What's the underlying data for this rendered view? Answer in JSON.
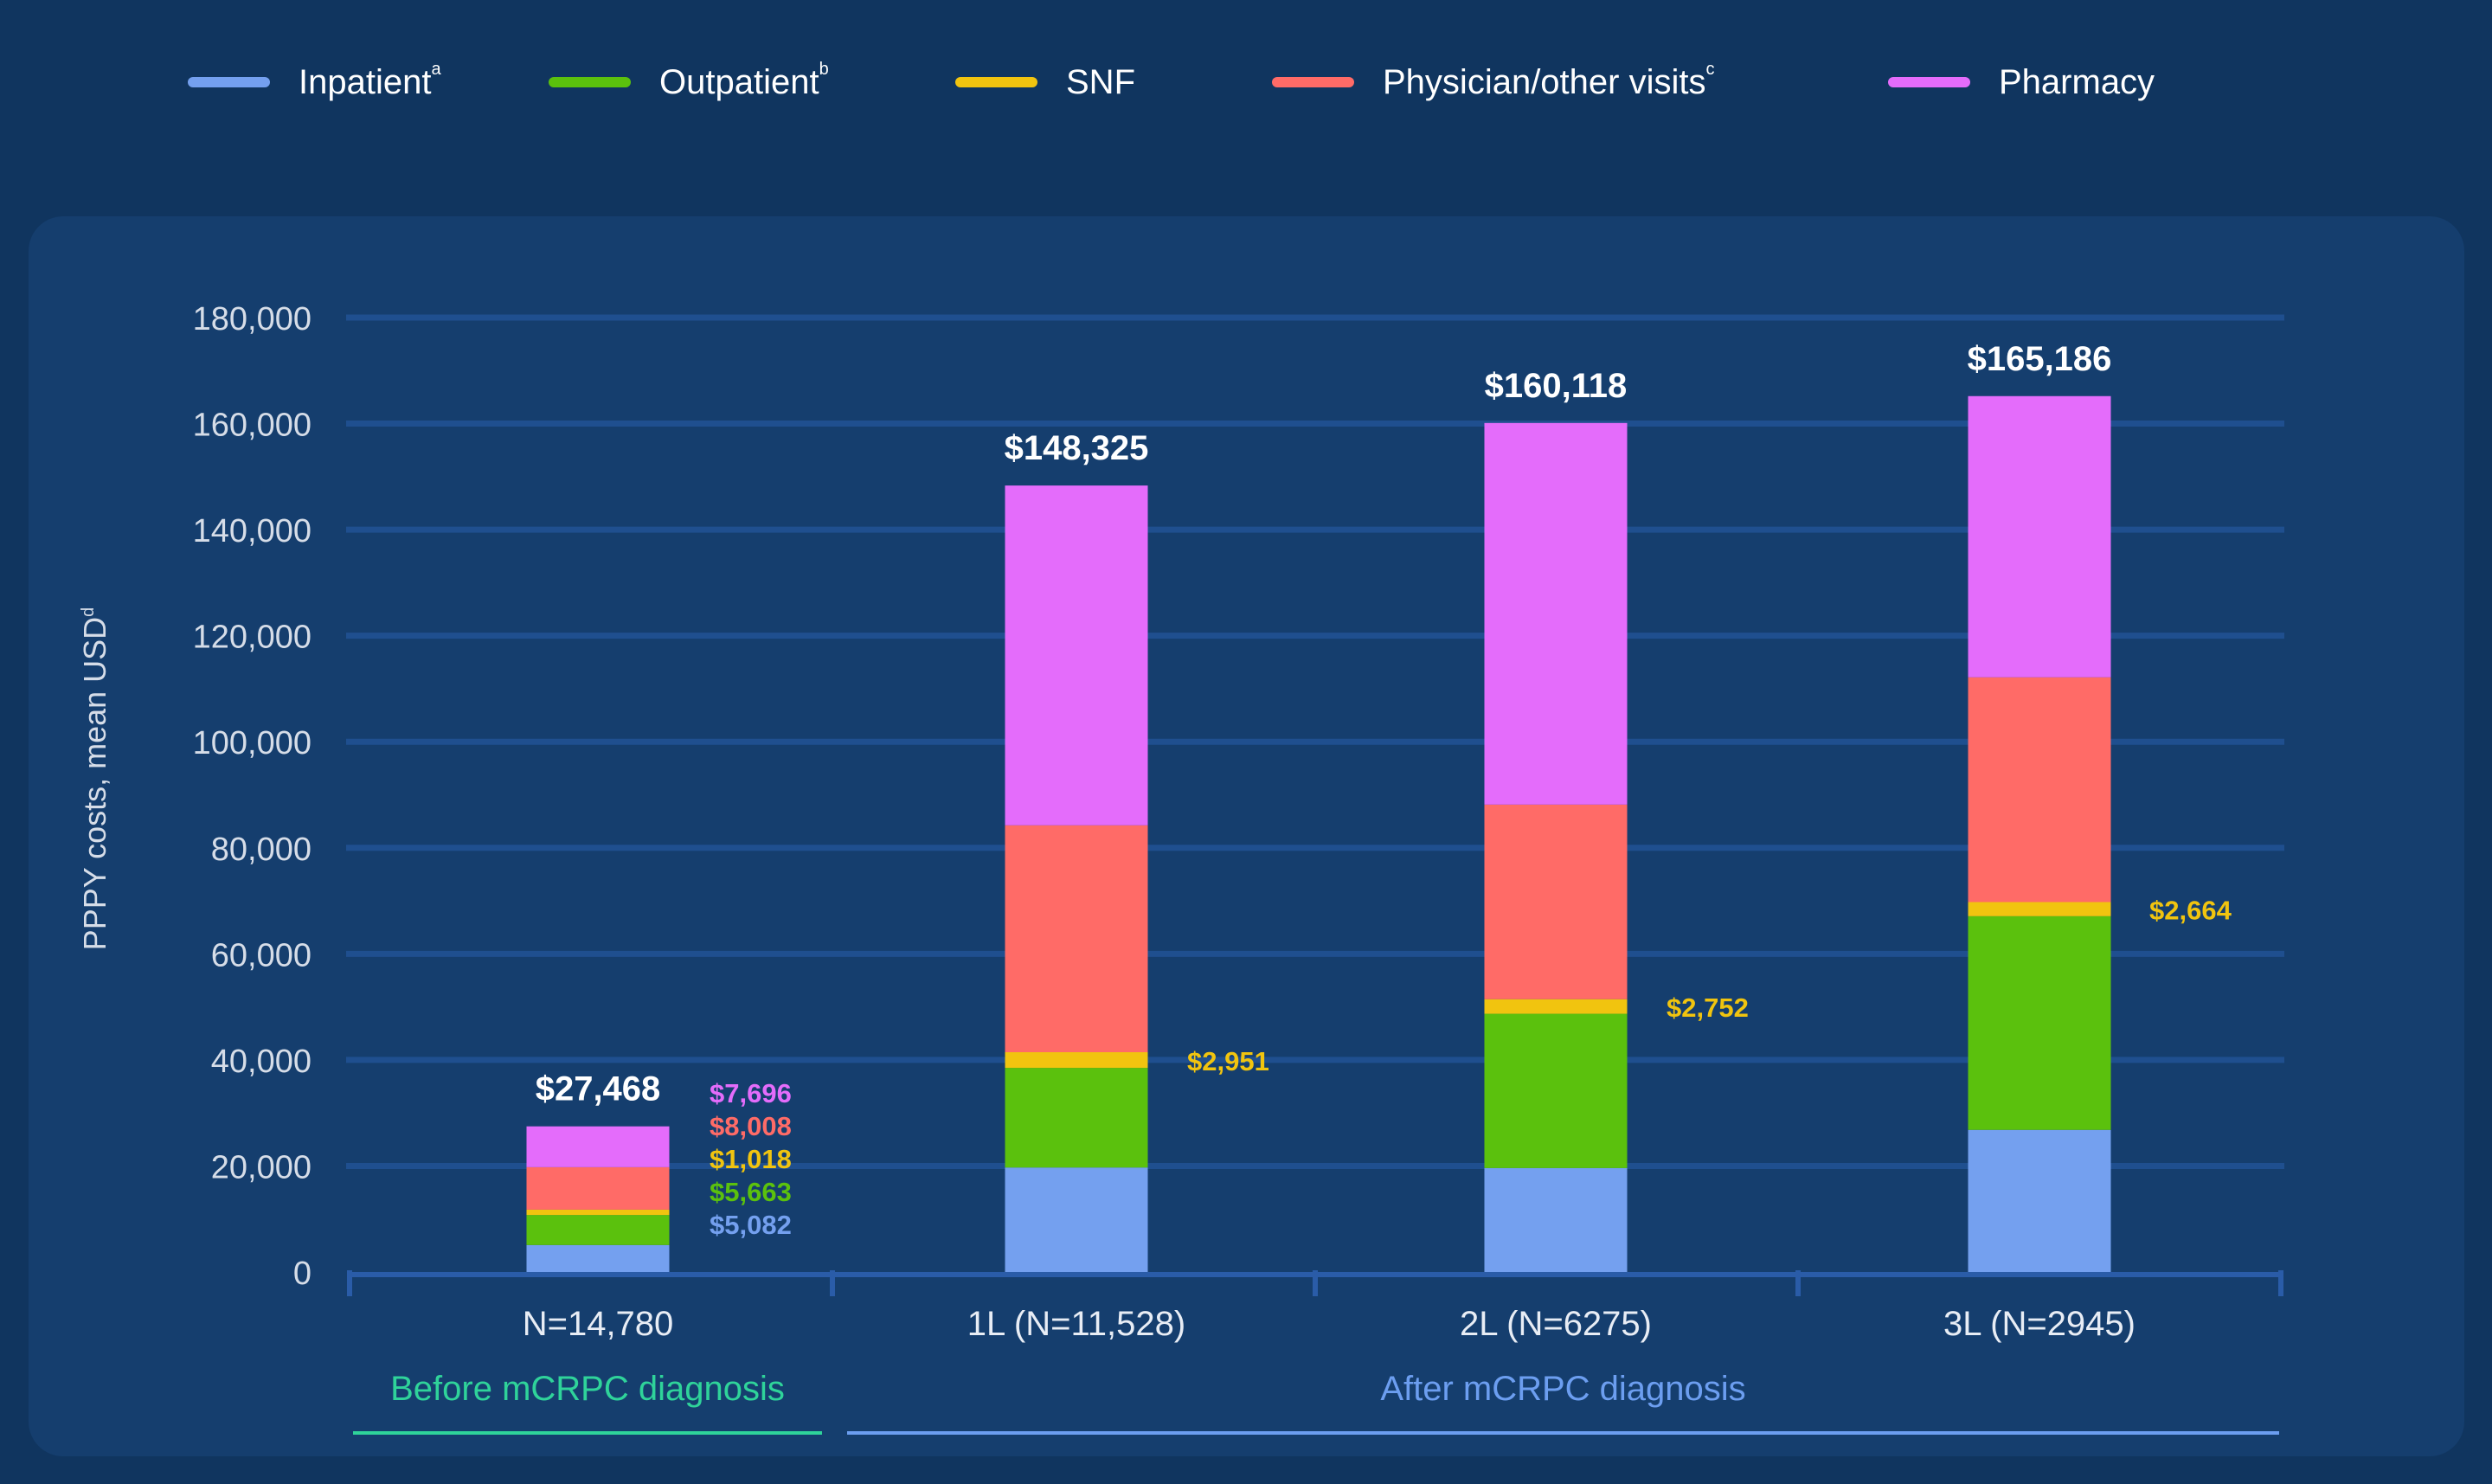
{
  "legend": [
    {
      "label": "Inpatient",
      "sup": "a",
      "color": "#74a0ef"
    },
    {
      "label": "Outpatient",
      "sup": "b",
      "color": "#5bc10d"
    },
    {
      "label": "SNF",
      "sup": "",
      "color": "#f1c40f"
    },
    {
      "label": "Physician/other visits",
      "sup": "c",
      "color": "#ff6b67"
    },
    {
      "label": "Pharmacy",
      "sup": "",
      "color": "#e46cfb"
    }
  ],
  "chart_data": {
    "type": "bar",
    "stacked": true,
    "ylabel": "PPPY costs, mean USD",
    "ylabel_sup": "d",
    "ylim": [
      0,
      180000
    ],
    "yticks": [
      "0",
      "20,000",
      "40,000",
      "60,000",
      "80,000",
      "100,000",
      "120,000",
      "140,000",
      "160,000",
      "180,000"
    ],
    "grid": true,
    "legend_position": "top",
    "categories": [
      "N=14,780",
      "1L (N=11,528)",
      "2L (N=6275)",
      "3L (N=2945)"
    ],
    "groups": [
      {
        "label": "Before mCRPC diagnosis",
        "color": "#2fd39a",
        "span": [
          0,
          0
        ]
      },
      {
        "label": "After mCRPC diagnosis",
        "color": "#6c9ef0",
        "span": [
          1,
          3
        ]
      }
    ],
    "totals": [
      "$27,468",
      "$148,325",
      "$160,118",
      "$165,186"
    ],
    "total_values": [
      27468,
      148325,
      160118,
      165186
    ],
    "series": [
      {
        "name": "Inpatient",
        "color": "#74a0ef",
        "values": [
          5082,
          19700,
          19600,
          26800
        ],
        "labels": [
          "$5,082",
          "",
          "",
          ""
        ]
      },
      {
        "name": "Outpatient",
        "color": "#5bc10d",
        "values": [
          5663,
          18800,
          29100,
          40300
        ],
        "labels": [
          "$5,663",
          "",
          "",
          ""
        ]
      },
      {
        "name": "SNF",
        "color": "#f1c40f",
        "values": [
          1018,
          2951,
          2752,
          2664
        ],
        "labels": [
          "$1,018",
          "$2,951",
          "$2,752",
          "$2,664"
        ]
      },
      {
        "name": "Physician/other visits",
        "color": "#ff6b67",
        "values": [
          8008,
          42800,
          36700,
          42400
        ],
        "labels": [
          "$8,008",
          "",
          "",
          ""
        ]
      },
      {
        "name": "Pharmacy",
        "color": "#e46cfb",
        "values": [
          7696,
          64074,
          71966,
          53022
        ],
        "labels": [
          "$7,696",
          "",
          "",
          ""
        ]
      }
    ]
  }
}
